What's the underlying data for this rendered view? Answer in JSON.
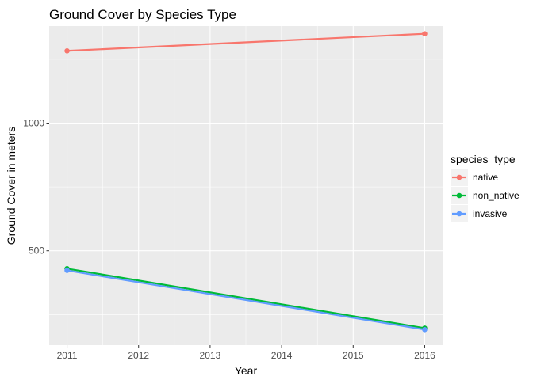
{
  "chart_data": {
    "type": "line",
    "title": "Ground Cover by Species Type",
    "xlabel": "Year",
    "ylabel": "Ground Cover in meters",
    "x": [
      2011,
      2016
    ],
    "x_ticks": [
      "2011",
      "2012",
      "2013",
      "2014",
      "2015",
      "2016"
    ],
    "y_ticks": [
      "500",
      "1000"
    ],
    "xlim": [
      2010.75,
      2016.25
    ],
    "ylim": [
      130,
      1380
    ],
    "grid": true,
    "legend": {
      "title": "species_type",
      "placement": "right"
    },
    "series": [
      {
        "name": "native",
        "color": "#F8766D",
        "values": [
          1283,
          1350
        ]
      },
      {
        "name": "non_native",
        "color": "#00BA38",
        "values": [
          430,
          197
        ]
      },
      {
        "name": "invasive",
        "color": "#619CFF",
        "values": [
          423,
          191
        ]
      }
    ]
  }
}
